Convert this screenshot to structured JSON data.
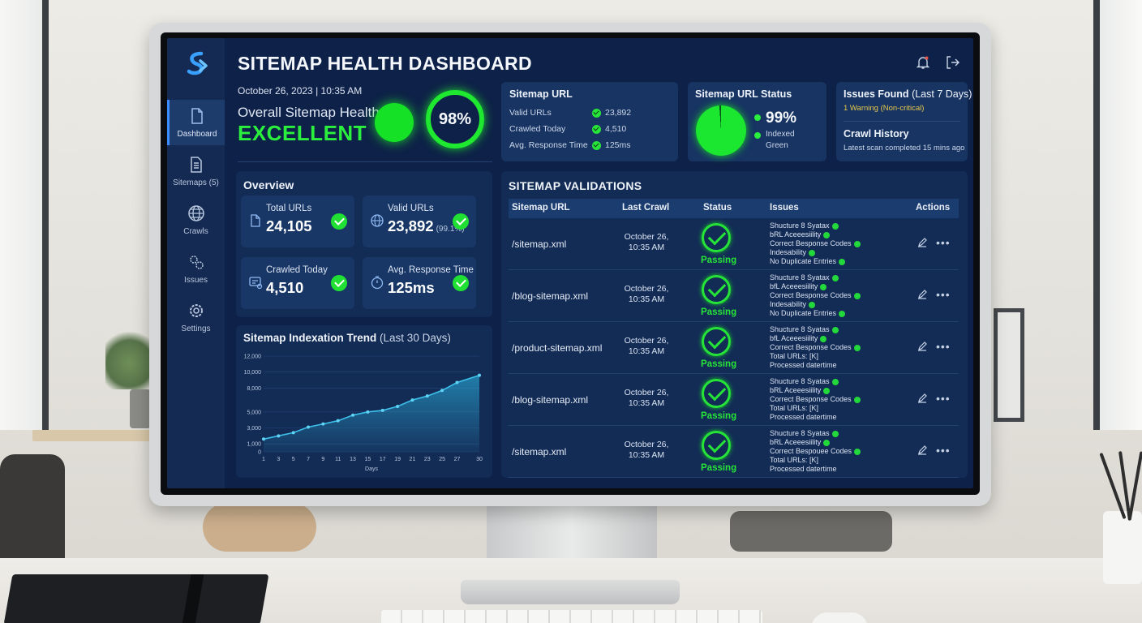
{
  "app": {
    "title": "SITEMAP HEALTH DASHBOARD",
    "date": "October 26, 2023 | 10:35 AM"
  },
  "sidebar": {
    "items": [
      {
        "label": "Dashboard",
        "icon": "document-icon",
        "active": true
      },
      {
        "label": "Sitemaps (5)",
        "icon": "sitemaps-icon"
      },
      {
        "label": "Crawls",
        "icon": "globe-icon"
      },
      {
        "label": "Issues",
        "icon": "gears-icon"
      },
      {
        "label": "Settings",
        "icon": "settings-icon"
      }
    ]
  },
  "header_icons": [
    "bell-icon",
    "logout-icon"
  ],
  "health": {
    "label": "Overall Sitemap Health:",
    "value": "EXCELLENT",
    "score": "98%"
  },
  "sitemap_url_card": {
    "title": "Sitemap URL",
    "rows": [
      {
        "label": "Valid URLs",
        "value": "23,892"
      },
      {
        "label": "Crawled Today",
        "value": "4,510"
      },
      {
        "label": "Avg. Response Time",
        "value": "125ms"
      }
    ]
  },
  "status_card": {
    "title": "Sitemap URL Status",
    "percent": "99%",
    "legend": [
      "Indexed",
      "Green"
    ],
    "indexed_fraction": 0.99
  },
  "issues_card": {
    "title_bold": "Issues Found",
    "title_light": "(Last 7 Days)",
    "warning": "1 Warning (Non-critical)",
    "history_title": "Crawl History",
    "history_text": "Latest scan completed 15 mins ago"
  },
  "overview": {
    "title": "Overview",
    "stats": [
      {
        "label": "Total URLs",
        "value": "24,105",
        "sub": "",
        "icon": "file-icon"
      },
      {
        "label": "Valid URLs",
        "value": "23,892",
        "sub": "(99.1%)",
        "icon": "globe-icon"
      },
      {
        "label": "Crawled Today",
        "value": "4,510",
        "sub": "",
        "icon": "crawl-icon"
      },
      {
        "label": "Avg. Response Time",
        "value": "125ms",
        "sub": "",
        "icon": "stopwatch-icon"
      }
    ]
  },
  "trend": {
    "title": "Sitemap Indexation Trend",
    "subtitle": "(Last 30 Days)"
  },
  "chart_data": {
    "type": "area",
    "title": "Sitemap Indexation Trend (Last 30 Days)",
    "xlabel": "Days",
    "ylabel": "",
    "x_ticks": [
      "1",
      "3",
      "5",
      "7",
      "9",
      "11",
      "13",
      "15",
      "17",
      "19",
      "21",
      "23",
      "25",
      "27",
      "30"
    ],
    "y_ticks": [
      "0",
      "1,000",
      "3,000",
      "5,000",
      "8,000",
      "10,000",
      "12,000"
    ],
    "ylim": [
      0,
      12000
    ],
    "x": [
      1,
      3,
      5,
      7,
      9,
      11,
      13,
      15,
      17,
      19,
      21,
      23,
      25,
      27,
      30
    ],
    "values": [
      1600,
      2000,
      2400,
      3100,
      3500,
      3900,
      4600,
      5000,
      5200,
      5700,
      6500,
      7000,
      7700,
      8700,
      9600
    ],
    "grid": true,
    "color": "#2aa8d6"
  },
  "validations": {
    "title": "SITEMAP VALIDATIONS",
    "columns": [
      "Sitemap URL",
      "Last Crawl",
      "Status",
      "Issues",
      "Actions"
    ],
    "rows": [
      {
        "url": "/sitemap.xml",
        "crawl1": "October 26,",
        "crawl2": "10:35 AM",
        "status": "Passing",
        "issues": [
          {
            "t": "Shucture 8 Syatax",
            "ok": true
          },
          {
            "t": "bRL Aceeesiility",
            "ok": true
          },
          {
            "t": "Correct Besponse Codes",
            "ok": true
          },
          {
            "t": "Indesability",
            "ok": true
          },
          {
            "t": "No Duplicate Entries",
            "ok": true
          }
        ]
      },
      {
        "url": "/blog-sitemap.xml",
        "crawl1": "October 26,",
        "crawl2": "10:35 AM",
        "status": "Passing",
        "issues": [
          {
            "t": "Shucture 8 Syatax",
            "ok": true
          },
          {
            "t": "bfL Aceeesiility",
            "ok": true
          },
          {
            "t": "Correct Besponse Codes",
            "ok": true
          },
          {
            "t": "Indesability",
            "ok": true
          },
          {
            "t": "No Duplicate Entries",
            "ok": true
          }
        ]
      },
      {
        "url": "/product-sitemap.xml",
        "crawl1": "October 26,",
        "crawl2": "10:35 AM",
        "status": "Passing",
        "issues": [
          {
            "t": "Shucture 8 Syatas",
            "ok": true
          },
          {
            "t": "bfL Aceeesiility",
            "ok": true
          },
          {
            "t": "Correct Besponse Codes",
            "ok": true
          },
          {
            "t": "Total URLs: [K]",
            "ok": false
          },
          {
            "t": "Processed datertime",
            "ok": false
          }
        ]
      },
      {
        "url": "/blog-sitemap.xml",
        "crawl1": "October 26,",
        "crawl2": "10:35 AM",
        "status": "Passing",
        "issues": [
          {
            "t": "Shucture 8 Syatas",
            "ok": true
          },
          {
            "t": "bRL Aceeesiility",
            "ok": true
          },
          {
            "t": "Correct Besponse Codes",
            "ok": true
          },
          {
            "t": "Total URLs: [K]",
            "ok": false
          },
          {
            "t": "Processed datertime",
            "ok": false
          }
        ]
      },
      {
        "url": "/sitemap.xml",
        "crawl1": "October 26,",
        "crawl2": "10:35 AM",
        "status": "Passing",
        "issues": [
          {
            "t": "Shucture 8 Syatas",
            "ok": true
          },
          {
            "t": "bRL Aceeesiility",
            "ok": true
          },
          {
            "t": "Correct Bespouee Codes",
            "ok": true
          },
          {
            "t": "Total URLs: [K]",
            "ok": false
          },
          {
            "t": "Processed datertime",
            "ok": false
          }
        ]
      }
    ]
  },
  "colors": {
    "accent_green": "#25e437",
    "screen_bg": "#0e2148",
    "card_bg": "#173463",
    "warning": "#e8c84a"
  }
}
